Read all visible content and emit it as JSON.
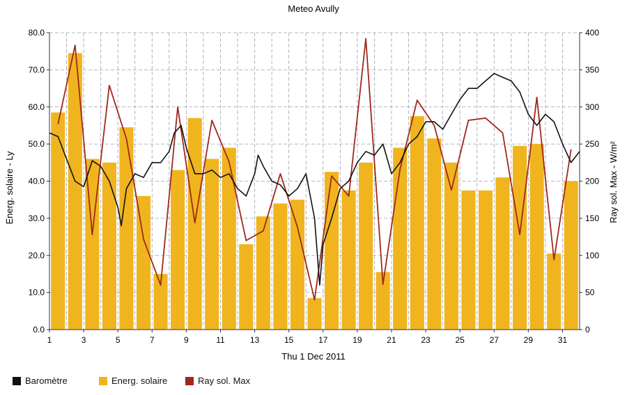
{
  "chart_data": {
    "type": "bar",
    "title": "Meteo  Avully",
    "xlabel": "Thu 1 Dec 2011",
    "ylabel_left": "Energ. solaire - Ly",
    "ylabel_right": "Ray sol. Max - W/m²",
    "x_ticks": [
      "1",
      "3",
      "5",
      "7",
      "9",
      "11",
      "13",
      "15",
      "17",
      "19",
      "21",
      "23",
      "25",
      "27",
      "29",
      "31"
    ],
    "ylim_left": [
      0,
      80
    ],
    "ylim_right": [
      0,
      400
    ],
    "yticks_left": [
      "0.0",
      "10.0",
      "20.0",
      "30.0",
      "40.0",
      "50.0",
      "60.0",
      "70.0",
      "80.0"
    ],
    "yticks_right": [
      "0",
      "50",
      "100",
      "150",
      "200",
      "250",
      "300",
      "350",
      "400"
    ],
    "grid": true,
    "legend_position": "bottom-left",
    "series": [
      {
        "name": "Energ. solaire",
        "type": "bar",
        "color": "#f0b51e",
        "x": [
          1.5,
          2.5,
          3.5,
          4.5,
          5.5,
          6.5,
          7.5,
          8.5,
          9.5,
          10.5,
          11.5,
          12.5,
          13.5,
          14.5,
          15.5,
          16.5,
          17.5,
          18.5,
          19.5,
          20.5,
          21.5,
          22.5,
          23.5,
          24.5,
          25.5,
          26.5,
          27.5,
          28.5,
          29.5,
          30.5,
          31.5
        ],
        "values": [
          58.5,
          74.5,
          46,
          45,
          54.5,
          36,
          15,
          43,
          57,
          46,
          49,
          23,
          30.5,
          34,
          35,
          8.5,
          42.5,
          37.5,
          45,
          15.5,
          49,
          57.5,
          51.5,
          45,
          37.5,
          37.5,
          41,
          49.5,
          50,
          20.5,
          40
        ]
      },
      {
        "name": "Ray sol. Max",
        "type": "line",
        "axis": "right",
        "color": "#a0281e",
        "x": [
          1.5,
          2.5,
          3.5,
          4.5,
          5.5,
          6.5,
          7.5,
          8.5,
          9.5,
          10.5,
          11.5,
          12.5,
          13.5,
          14.5,
          15.5,
          16.5,
          17.5,
          18.5,
          19.5,
          20.5,
          21.5,
          22.5,
          23.5,
          24.5,
          25.5,
          26.5,
          27.5,
          28.5,
          29.5,
          30.5,
          31.5
        ],
        "values": [
          277,
          383,
          128,
          329,
          257,
          122,
          60,
          300,
          144,
          282,
          226,
          120,
          133,
          210,
          138,
          40,
          207,
          180,
          392,
          61,
          216,
          309,
          275,
          188,
          282,
          285,
          265,
          128,
          313,
          94,
          243
        ]
      },
      {
        "name": "Baromètre",
        "type": "line",
        "axis": "left",
        "color": "#111111",
        "x": [
          1,
          1.5,
          2,
          2.5,
          3,
          3.5,
          4,
          4.5,
          5,
          5.2,
          5.5,
          6,
          6.5,
          7,
          7.5,
          8,
          8.3,
          8.7,
          9,
          9.5,
          10,
          10.5,
          11,
          11.5,
          12,
          12.5,
          13,
          13.2,
          13.5,
          14,
          14.5,
          15,
          15.5,
          16,
          16.5,
          16.8,
          17,
          17.5,
          18,
          18.5,
          19,
          19.5,
          20,
          20.5,
          21,
          21.5,
          22,
          22.5,
          23,
          23.5,
          24,
          24.5,
          25,
          25.5,
          26,
          26.5,
          27,
          27.5,
          28,
          28.5,
          29,
          29.5,
          30,
          30.5,
          31,
          31.5,
          32
        ],
        "values": [
          53,
          52,
          46,
          40,
          38.5,
          45.5,
          44,
          40,
          33,
          28,
          38,
          42,
          41,
          45,
          45,
          48,
          53,
          55,
          49,
          42,
          42,
          43,
          41,
          42,
          38,
          36,
          42,
          47,
          44,
          40,
          39,
          36,
          38,
          42,
          30,
          12,
          23,
          30,
          38,
          40,
          45,
          48,
          47,
          50,
          42,
          45,
          50,
          52,
          56,
          56,
          54,
          58,
          62,
          65,
          65,
          67,
          69,
          68,
          67,
          64,
          58,
          55,
          58,
          56,
          50,
          45,
          48
        ]
      }
    ]
  }
}
